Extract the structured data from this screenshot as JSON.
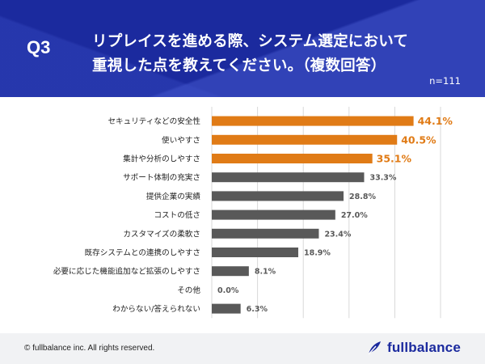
{
  "header": {
    "question_label": "Q3",
    "title_line1": "リプレイスを進める際、システム選定において",
    "title_line2": "重視した点を教えてください。（複数回答）",
    "sample_size": "n=111"
  },
  "chart_data": {
    "type": "bar",
    "orientation": "horizontal",
    "categories": [
      "セキュリティなどの安全性",
      "使いやすさ",
      "集計や分析のしやすさ",
      "サポート体制の充実さ",
      "提供企業の実績",
      "コストの低さ",
      "カスタマイズの柔軟さ",
      "既存システムとの連携のしやすさ",
      "必要に応じた機能追加など拡張のしやすさ",
      "その他",
      "わからない/答えられない"
    ],
    "values": [
      44.1,
      40.5,
      35.1,
      33.3,
      28.8,
      27.0,
      23.4,
      18.9,
      8.1,
      0.0,
      6.3
    ],
    "value_labels": [
      "44.1%",
      "40.5%",
      "35.1%",
      "33.3%",
      "28.8%",
      "27.0%",
      "23.4%",
      "18.9%",
      "8.1%",
      "0.0%",
      "6.3%"
    ],
    "unit": "%",
    "xlim": [
      0,
      50
    ],
    "grid": true,
    "highlight_top_n": 3,
    "colors": {
      "highlight": "#e07b16",
      "default": "#595959",
      "grid": "#d9d9d9"
    }
  },
  "footer": {
    "copyright": "© fullbalance inc. All rights reserved.",
    "brand": "fullbalance",
    "brand_icon": "feather-logo-icon",
    "brand_color": "#1b2a9e"
  }
}
